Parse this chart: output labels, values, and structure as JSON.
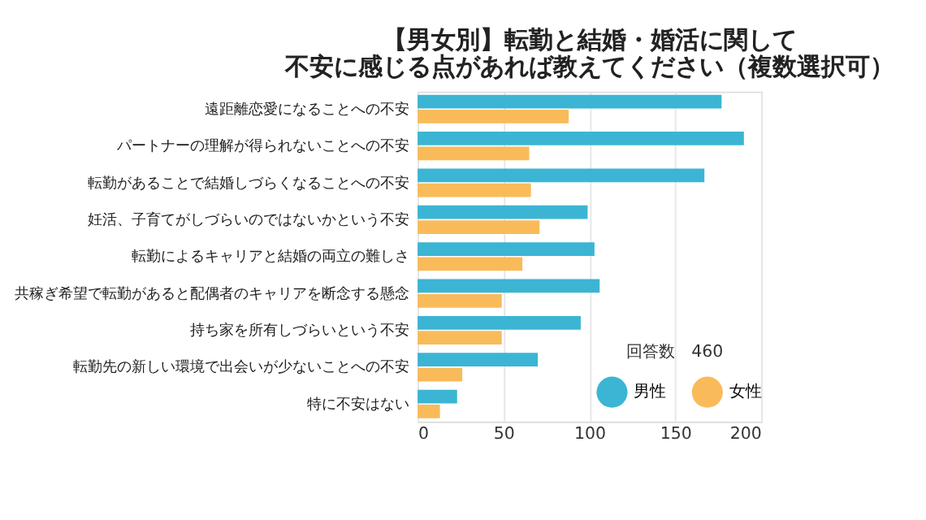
{
  "chart_data": {
    "type": "bar",
    "orientation": "horizontal",
    "title": [
      "【男女別】転勤と結婚・婚活に関して",
      "不安に感じる点があれば教えてください（複数選択可）"
    ],
    "categories": [
      "遠距離恋愛になることへの不安",
      "パートナーの理解が得られないことへの不安",
      "転勤があることで結婚しづらくなることへの不安",
      "妊活、子育てがしづらいのではないかという不安",
      "転勤によるキャリアと結婚の両立の難しさ",
      "共稼ぎ希望で転勤があると配偶者のキャリアを断念する懸念",
      "持ち家を所有しづらいという不安",
      "転勤先の新しい環境で出会いが少ないことへの不安",
      "特に不安はない"
    ],
    "series": [
      {
        "name": "男性",
        "color": "#3bb5d3",
        "values": [
          177,
          190,
          167,
          99,
          103,
          106,
          95,
          70,
          23
        ]
      },
      {
        "name": "女性",
        "color": "#f9bb5a",
        "values": [
          88,
          65,
          66,
          71,
          61,
          49,
          49,
          26,
          13
        ]
      }
    ],
    "xlim": [
      0,
      200
    ],
    "xticks": [
      0,
      50,
      100,
      150,
      200
    ],
    "grid": "x",
    "legend": "bottom right",
    "annotations": [
      "回答数　460"
    ]
  }
}
